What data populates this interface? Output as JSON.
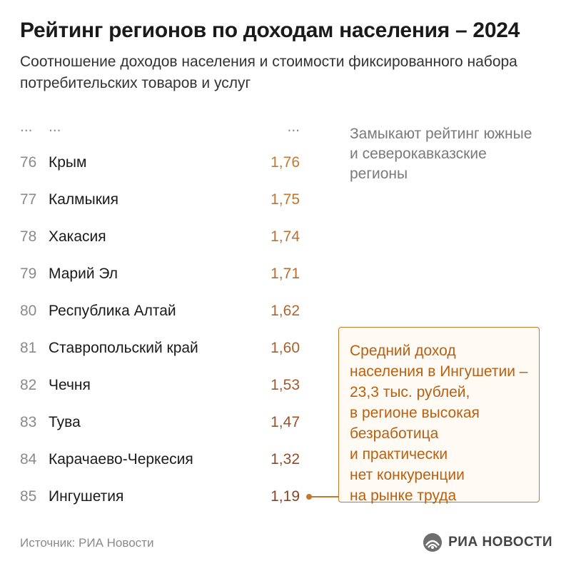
{
  "title": "Рейтинг регионов по доходам населения – 2024",
  "subtitle": "Соотношение доходов населения и стоимости фиксированного набора потребительских товаров и услуг",
  "chart_data": {
    "type": "table",
    "header_row": {
      "rank": "...",
      "name": "...",
      "value": "..."
    },
    "rows": [
      {
        "rank": "76",
        "name": "Крым",
        "value": "1,76"
      },
      {
        "rank": "77",
        "name": "Калмыкия",
        "value": "1,75"
      },
      {
        "rank": "78",
        "name": "Хакасия",
        "value": "1,74"
      },
      {
        "rank": "79",
        "name": "Марий Эл",
        "value": "1,71"
      },
      {
        "rank": "80",
        "name": "Республика Алтай",
        "value": "1,62"
      },
      {
        "rank": "81",
        "name": "Ставропольский край",
        "value": "1,60"
      },
      {
        "rank": "82",
        "name": "Чечня",
        "value": "1,53"
      },
      {
        "rank": "83",
        "name": "Тува",
        "value": "1,47"
      },
      {
        "rank": "84",
        "name": "Карачаево-Черкесия",
        "value": "1,32"
      },
      {
        "rank": "85",
        "name": "Ингушетия",
        "value": "1,19"
      }
    ],
    "value_colors": [
      "#c4782e",
      "#c07430",
      "#bb7031",
      "#b66b31",
      "#b06630",
      "#a9602f",
      "#a25a2d",
      "#9a532b",
      "#914c29",
      "#884526"
    ]
  },
  "note": "Замыкают рейтинг южные и северокавказские регионы",
  "callout": {
    "lines": [
      "Средний доход",
      "населения в Ингушетии –",
      "23,3 тыс. рублей,",
      "в регионе высокая",
      "безработица",
      "и практически",
      "нет конкуренции",
      "на рынке труда"
    ],
    "color": "#b8600f"
  },
  "source": "Источник: РИА Новости",
  "logo": {
    "text": "РИА НОВОСТИ",
    "icon": "ria-novosti-logo-icon"
  }
}
